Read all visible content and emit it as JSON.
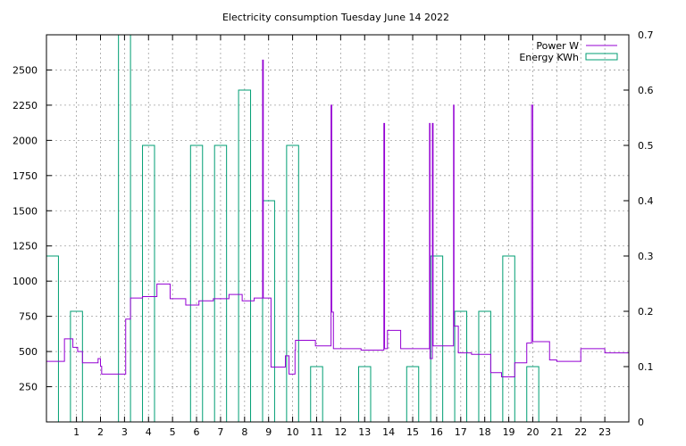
{
  "chart_data": {
    "type": "line",
    "title": "Electricity consumption Tuesday June 14 2022",
    "xlabel": "",
    "ylabel": "",
    "y2label": "",
    "grid": true,
    "legend_position": "top-right",
    "xlim": [
      -0.25,
      24
    ],
    "ylim": [
      0,
      2750
    ],
    "y2lim": [
      0,
      0.7
    ],
    "x_ticks": [
      1,
      2,
      3,
      4,
      5,
      6,
      7,
      8,
      9,
      10,
      11,
      12,
      13,
      14,
      15,
      16,
      17,
      18,
      19,
      20,
      21,
      22,
      23
    ],
    "y_ticks": [
      250,
      500,
      750,
      1000,
      1250,
      1500,
      1750,
      2000,
      2250,
      2500
    ],
    "y2_ticks": [
      "0",
      "0.1",
      "0.2",
      "0.3",
      "0.4",
      "0.5",
      "0.6",
      "0.7"
    ],
    "colors": {
      "power": "#9400d3",
      "energy": "#009e73",
      "grid": "#a0a0a0"
    },
    "series": [
      {
        "name": "Power W",
        "axis": "left",
        "style": "step-line",
        "x": [
          -0.25,
          -0.15,
          -0.15,
          0.5,
          0.5,
          0.85,
          0.85,
          1.05,
          1.05,
          1.25,
          1.25,
          1.9,
          1.9,
          2.0,
          2.0,
          2.05,
          2.05,
          2.3,
          2.3,
          3.05,
          3.05,
          3.25,
          3.25,
          3.75,
          3.75,
          4.35,
          4.35,
          4.9,
          4.9,
          5.55,
          5.55,
          6.1,
          6.1,
          6.7,
          6.7,
          7.35,
          7.35,
          7.9,
          7.9,
          8.4,
          8.4,
          8.75,
          8.75,
          8.78,
          8.78,
          9.1,
          9.1,
          9.15,
          9.15,
          9.7,
          9.7,
          9.85,
          9.85,
          10.1,
          10.1,
          10.12,
          10.12,
          10.95,
          10.95,
          11.6,
          11.6,
          11.63,
          11.63,
          11.7,
          11.7,
          12.0,
          12.0,
          12.85,
          12.85,
          13.8,
          13.8,
          13.83,
          13.83,
          13.95,
          13.95,
          14.5,
          14.5,
          15.7,
          15.7,
          15.72,
          15.72,
          15.82,
          15.82,
          15.85,
          15.85,
          16.7,
          16.7,
          16.72,
          16.72,
          16.9,
          16.9,
          17.45,
          17.45,
          18.25,
          18.25,
          18.7,
          18.7,
          19.25,
          19.25,
          19.75,
          19.75,
          19.95,
          19.95,
          20.0,
          20.0,
          20.7,
          20.7,
          21.0,
          21.0,
          22.0,
          22.0,
          23.0,
          23.0,
          24.0
        ],
        "y": [
          430,
          430,
          430,
          430,
          590,
          590,
          530,
          530,
          500,
          500,
          420,
          420,
          450,
          450,
          395,
          395,
          340,
          340,
          340,
          340,
          730,
          730,
          880,
          880,
          890,
          890,
          980,
          980,
          875,
          875,
          830,
          830,
          860,
          860,
          875,
          875,
          905,
          905,
          860,
          860,
          880,
          880,
          2570,
          2570,
          880,
          880,
          390,
          390,
          390,
          390,
          470,
          470,
          340,
          340,
          510,
          510,
          580,
          580,
          540,
          540,
          2250,
          2250,
          780,
          780,
          520,
          520,
          520,
          520,
          510,
          510,
          2120,
          2120,
          520,
          520,
          650,
          650,
          520,
          520,
          2120,
          2120,
          450,
          450,
          2120,
          2120,
          540,
          540,
          2250,
          2250,
          680,
          680,
          490,
          490,
          480,
          480,
          350,
          350,
          320,
          320,
          420,
          420,
          560,
          560,
          2250,
          2250,
          570,
          570,
          440,
          440,
          430,
          430,
          520,
          520,
          490,
          490
        ]
      },
      {
        "name": "Energy KWh",
        "axis": "right",
        "style": "boxes",
        "x": [
          0,
          1,
          2,
          3,
          4,
          5,
          6,
          7,
          8,
          9,
          10,
          11,
          12,
          13,
          14,
          15,
          16,
          17,
          18,
          19,
          20,
          21,
          22,
          23
        ],
        "values": [
          0.3,
          0.2,
          0,
          0.7,
          0.5,
          0,
          0.5,
          0.5,
          0.6,
          0.4,
          0.5,
          0.1,
          0,
          0.1,
          0,
          0.1,
          0.3,
          0.2,
          0.2,
          0.3,
          0.1,
          0,
          0,
          0
        ]
      }
    ]
  }
}
